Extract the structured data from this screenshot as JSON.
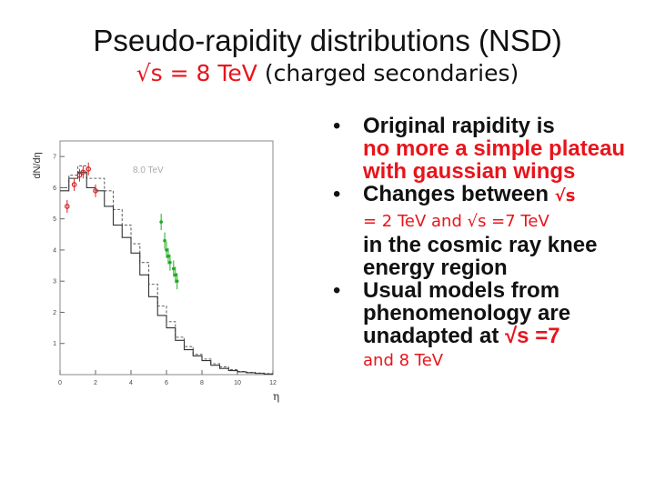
{
  "title": {
    "line1": "Pseudo-rapidity distributions (NSD)",
    "line2_energy": "√s = 8 TeV",
    "line2_rest": " (charged secondaries)"
  },
  "bullets": [
    {
      "part1": "Original rapidity is",
      "part2": "no more a simple plateau with gaussian wings"
    },
    {
      "part1": "Changes between ",
      "sqrt1": "√s",
      "mid": "= 2 TeV and √s =7 TeV",
      "part3": "in the cosmic ray knee energy region"
    },
    {
      "part1": "Usual  models from phenomenology are unadapted at",
      "sqrt": " √s =7",
      "tail": "and 8 TeV"
    }
  ],
  "chart_data": {
    "type": "line",
    "ylabel": "dN/dη",
    "xlabel": "η",
    "xlim": [
      0,
      12
    ],
    "ylim": [
      0,
      7.5
    ],
    "x_ticks": [
      0,
      2,
      4,
      6,
      8,
      10,
      12
    ],
    "y_ticks": [
      1,
      2,
      3,
      4,
      5,
      6,
      7
    ],
    "annotation": "8.0 TeV",
    "colors": {
      "solid": "#333333",
      "dashed": "#666666",
      "red": "#d42020",
      "green": "#22aa22"
    },
    "series": [
      {
        "style": "solid-histogram",
        "x": [
          0,
          0.5,
          1,
          1.5,
          2,
          2.5,
          3,
          3.5,
          4,
          4.5,
          5,
          5.5,
          6,
          6.5,
          7,
          7.5,
          8,
          8.5,
          9,
          9.5,
          10,
          10.5,
          11,
          11.5
        ],
        "values": [
          5.9,
          6.3,
          6.5,
          6.0,
          5.9,
          5.4,
          4.8,
          4.4,
          3.9,
          3.2,
          2.5,
          1.9,
          1.5,
          1.1,
          0.8,
          0.6,
          0.45,
          0.3,
          0.2,
          0.13,
          0.09,
          0.06,
          0.04,
          0.02
        ]
      },
      {
        "style": "dashed-histogram",
        "x": [
          0,
          0.5,
          1,
          1.5,
          2,
          2.5,
          3,
          3.5,
          4,
          4.5,
          5,
          5.5,
          6,
          6.5,
          7,
          7.5,
          8,
          8.5,
          9,
          9.5,
          10,
          10.5,
          11,
          11.5
        ],
        "values": [
          6.0,
          6.4,
          6.7,
          6.3,
          6.3,
          5.9,
          5.3,
          4.8,
          4.2,
          3.6,
          2.9,
          2.2,
          1.7,
          1.2,
          0.9,
          0.65,
          0.5,
          0.35,
          0.25,
          0.16,
          0.1,
          0.07,
          0.05,
          0.03
        ]
      },
      {
        "style": "red-points",
        "x": [
          0.4,
          0.8,
          1.1,
          1.3,
          1.6,
          2.0
        ],
        "values": [
          5.4,
          6.1,
          6.4,
          6.5,
          6.6,
          5.9
        ]
      },
      {
        "style": "green-points",
        "x": [
          5.7,
          5.9,
          6.0,
          6.1,
          6.2,
          6.4,
          6.5,
          6.6
        ],
        "values": [
          4.9,
          4.3,
          4.0,
          3.8,
          3.6,
          3.4,
          3.2,
          3.0
        ]
      }
    ]
  }
}
